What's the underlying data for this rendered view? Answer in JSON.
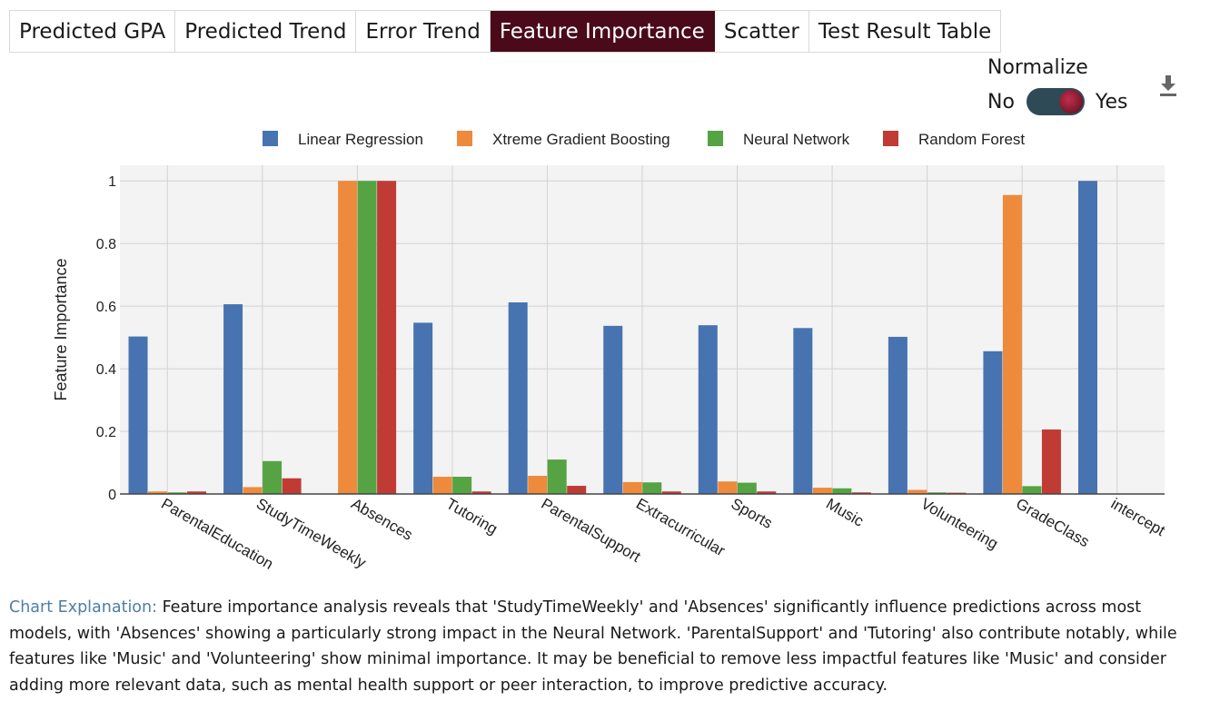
{
  "tabs": [
    {
      "label": "Predicted GPA",
      "active": false
    },
    {
      "label": "Predicted Trend",
      "active": false
    },
    {
      "label": "Error Trend",
      "active": false
    },
    {
      "label": "Feature Importance",
      "active": true
    },
    {
      "label": "Scatter",
      "active": false
    },
    {
      "label": "Test Result Table",
      "active": false
    }
  ],
  "normalize": {
    "title": "Normalize",
    "off_label": "No",
    "on_label": "Yes",
    "value": true
  },
  "explanation": {
    "label": "Chart Explanation:",
    "text": "Feature importance analysis reveals that 'StudyTimeWeekly' and 'Absences' significantly influence predictions across most models, with 'Absences' showing a particularly strong impact in the Neural Network. 'ParentalSupport' and 'Tutoring' also contribute notably, while features like 'Music' and 'Volunteering' show minimal importance. It may be beneficial to remove less impactful features like 'Music' and consider adding more relevant data, such as mental health support or peer interaction, to improve predictive accuracy."
  },
  "icons": {
    "download": "download-icon"
  },
  "chart_data": {
    "type": "bar",
    "ylabel": "Feature Importance",
    "ylim": [
      0,
      1.05
    ],
    "yticks": [
      0,
      0.2,
      0.4,
      0.6,
      0.8,
      1
    ],
    "grid": true,
    "legend_position": "top",
    "categories": [
      "ParentalEducation",
      "StudyTimeWeekly",
      "Absences",
      "Tutoring",
      "ParentalSupport",
      "Extracurricular",
      "Sports",
      "Music",
      "Volunteering",
      "GradeClass",
      "intercept"
    ],
    "series": [
      {
        "name": "Linear Regression",
        "color": "#4773b0",
        "values": [
          0.503,
          0.606,
          0,
          0.547,
          0.612,
          0.537,
          0.539,
          0.53,
          0.502,
          0.456,
          1.0
        ]
      },
      {
        "name": "Xtreme Gradient Boosting",
        "color": "#ed8a3c",
        "values": [
          0.008,
          0.022,
          1.0,
          0.055,
          0.058,
          0.038,
          0.04,
          0.02,
          0.013,
          0.955,
          0
        ]
      },
      {
        "name": "Neural Network",
        "color": "#55a343",
        "values": [
          0.005,
          0.105,
          1.0,
          0.055,
          0.11,
          0.037,
          0.036,
          0.018,
          0.005,
          0.025,
          0
        ]
      },
      {
        "name": "Random Forest",
        "color": "#c13b35",
        "values": [
          0.008,
          0.05,
          1.0,
          0.008,
          0.026,
          0.008,
          0.008,
          0.005,
          0.004,
          0.206,
          0
        ]
      }
    ]
  }
}
